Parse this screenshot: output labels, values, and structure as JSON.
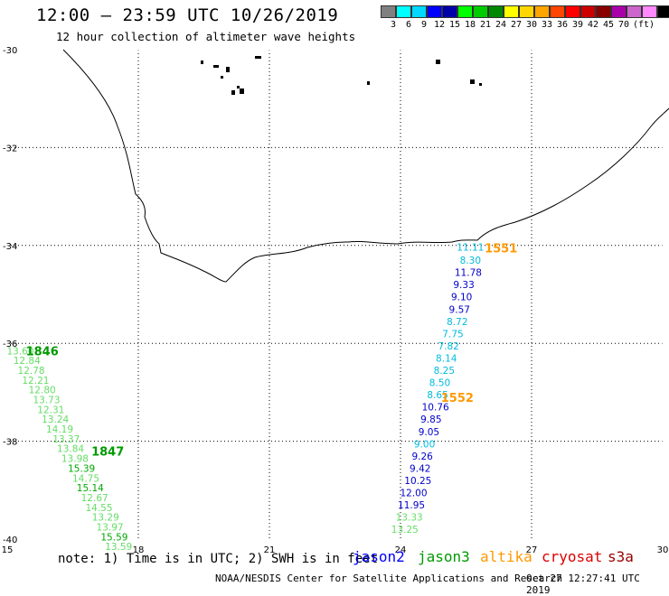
{
  "header": {
    "title": "12:00 – 23:59 UTC 10/26/2019",
    "subtitle": "12 hour collection of altimeter wave heights"
  },
  "legend": {
    "unit": "(ft)",
    "colors": [
      "#808080",
      "#00ffff",
      "#00d8ff",
      "#0000ff",
      "#0000aa",
      "#00ff00",
      "#00cc00",
      "#008800",
      "#ffff00",
      "#ffd700",
      "#ffa500",
      "#ff4500",
      "#ff0000",
      "#cc0000",
      "#880000",
      "#aa00aa",
      "#cc66cc",
      "#ff88ff",
      "#000000"
    ],
    "labels": [
      "3",
      "6",
      "9",
      "12",
      "15",
      "18",
      "21",
      "24",
      "27",
      "30",
      "33",
      "36",
      "39",
      "42",
      "45",
      "70"
    ]
  },
  "axes": {
    "lon_ticks": [
      "15",
      "18",
      "21",
      "24",
      "27",
      "30"
    ],
    "lat_ticks": [
      "-30",
      "-32",
      "-34",
      "-36",
      "-38",
      "-40"
    ]
  },
  "passes": [
    {
      "label": "1551",
      "color": "#ff9900",
      "lon": 26.3,
      "lat": -34.05
    },
    {
      "label": "1552",
      "color": "#ff9900",
      "lon": 25.3,
      "lat": -37.1
    },
    {
      "label": "1846",
      "color": "#009900",
      "lon": 15.8,
      "lat": -36.15
    },
    {
      "label": "1847",
      "color": "#009900",
      "lon": 17.3,
      "lat": -38.2
    }
  ],
  "tracks": [
    {
      "name": "track-east",
      "points": [
        {
          "v": "11.11",
          "lon": 25.6,
          "lat": -34.03,
          "c": "#00bbdd"
        },
        {
          "v": "8.30",
          "lon": 25.6,
          "lat": -34.3,
          "c": "#00bbdd"
        },
        {
          "v": "11.78",
          "lon": 25.55,
          "lat": -34.55,
          "c": "#0000cc"
        },
        {
          "v": "9.33",
          "lon": 25.45,
          "lat": -34.8,
          "c": "#0000cc"
        },
        {
          "v": "9.10",
          "lon": 25.4,
          "lat": -35.05,
          "c": "#0000cc"
        },
        {
          "v": "9.57",
          "lon": 25.35,
          "lat": -35.3,
          "c": "#0000cc"
        },
        {
          "v": "8.72",
          "lon": 25.3,
          "lat": -35.55,
          "c": "#00bbdd"
        },
        {
          "v": "7.75",
          "lon": 25.2,
          "lat": -35.8,
          "c": "#00bbdd"
        },
        {
          "v": "7.82",
          "lon": 25.1,
          "lat": -36.05,
          "c": "#00bbdd"
        },
        {
          "v": "8.14",
          "lon": 25.05,
          "lat": -36.3,
          "c": "#00bbdd"
        },
        {
          "v": "8.25",
          "lon": 25.0,
          "lat": -36.55,
          "c": "#00bbdd"
        },
        {
          "v": "8.50",
          "lon": 24.9,
          "lat": -36.8,
          "c": "#00bbdd"
        },
        {
          "v": "8.65",
          "lon": 24.85,
          "lat": -37.05,
          "c": "#00bbdd"
        },
        {
          "v": "10.76",
          "lon": 24.8,
          "lat": -37.3,
          "c": "#0000cc"
        },
        {
          "v": "9.85",
          "lon": 24.7,
          "lat": -37.55,
          "c": "#0000cc"
        },
        {
          "v": "9.05",
          "lon": 24.65,
          "lat": -37.8,
          "c": "#0000cc"
        },
        {
          "v": "9.00",
          "lon": 24.55,
          "lat": -38.05,
          "c": "#00bbdd"
        },
        {
          "v": "9.26",
          "lon": 24.5,
          "lat": -38.3,
          "c": "#0000cc"
        },
        {
          "v": "9.42",
          "lon": 24.45,
          "lat": -38.55,
          "c": "#0000cc"
        },
        {
          "v": "10.25",
          "lon": 24.4,
          "lat": -38.8,
          "c": "#0000cc"
        },
        {
          "v": "12.00",
          "lon": 24.3,
          "lat": -39.05,
          "c": "#0000cc"
        },
        {
          "v": "11.95",
          "lon": 24.25,
          "lat": -39.3,
          "c": "#0000cc"
        },
        {
          "v": "13.33",
          "lon": 24.2,
          "lat": -39.55,
          "c": "#66dd66"
        },
        {
          "v": "13.25",
          "lon": 24.1,
          "lat": -39.8,
          "c": "#66dd66"
        }
      ]
    },
    {
      "name": "track-west",
      "points": [
        {
          "v": "13.60",
          "lon": 15.3,
          "lat": -36.15,
          "c": "#66dd66"
        },
        {
          "v": "12.84",
          "lon": 15.45,
          "lat": -36.35,
          "c": "#66dd66"
        },
        {
          "v": "12.78",
          "lon": 15.55,
          "lat": -36.55,
          "c": "#66dd66"
        },
        {
          "v": "12.21",
          "lon": 15.65,
          "lat": -36.75,
          "c": "#66dd66"
        },
        {
          "v": "12.80",
          "lon": 15.8,
          "lat": -36.95,
          "c": "#66dd66"
        },
        {
          "v": "13.73",
          "lon": 15.9,
          "lat": -37.15,
          "c": "#66dd66"
        },
        {
          "v": "12.31",
          "lon": 16.0,
          "lat": -37.35,
          "c": "#66dd66"
        },
        {
          "v": "13.24",
          "lon": 16.1,
          "lat": -37.55,
          "c": "#66dd66"
        },
        {
          "v": "14.19",
          "lon": 16.2,
          "lat": -37.75,
          "c": "#66dd66"
        },
        {
          "v": "13.37",
          "lon": 16.35,
          "lat": -37.95,
          "c": "#66dd66"
        },
        {
          "v": "13.84",
          "lon": 16.45,
          "lat": -38.15,
          "c": "#66dd66"
        },
        {
          "v": "13.98",
          "lon": 16.55,
          "lat": -38.35,
          "c": "#66dd66"
        },
        {
          "v": "15.39",
          "lon": 16.7,
          "lat": -38.55,
          "c": "#00aa00"
        },
        {
          "v": "14.75",
          "lon": 16.8,
          "lat": -38.75,
          "c": "#66dd66"
        },
        {
          "v": "15.14",
          "lon": 16.9,
          "lat": -38.95,
          "c": "#00aa00"
        },
        {
          "v": "12.67",
          "lon": 17.0,
          "lat": -39.15,
          "c": "#66dd66"
        },
        {
          "v": "14.55",
          "lon": 17.1,
          "lat": -39.35,
          "c": "#66dd66"
        },
        {
          "v": "13.29",
          "lon": 17.25,
          "lat": -39.55,
          "c": "#66dd66"
        },
        {
          "v": "13.97",
          "lon": 17.35,
          "lat": -39.75,
          "c": "#66dd66"
        },
        {
          "v": "15.59",
          "lon": 17.45,
          "lat": -39.95,
          "c": "#00aa00"
        },
        {
          "v": "13.59",
          "lon": 17.55,
          "lat": -40.15,
          "c": "#66dd66"
        }
      ]
    }
  ],
  "note": "note: 1) Time is in UTC; 2) SWH is in feet",
  "satellites": [
    {
      "name": "jason2",
      "color": "#0000ff"
    },
    {
      "name": "jason3",
      "color": "#009900"
    },
    {
      "name": "altika",
      "color": "#ff9900"
    },
    {
      "name": "cryosat",
      "color": "#dd0000"
    },
    {
      "name": "s3a",
      "color": "#990000"
    }
  ],
  "footer": {
    "left": "NOAA/NESDIS Center for Satellite Applications and Research",
    "right": "Oct 27 12:27:41 UTC 2019"
  }
}
